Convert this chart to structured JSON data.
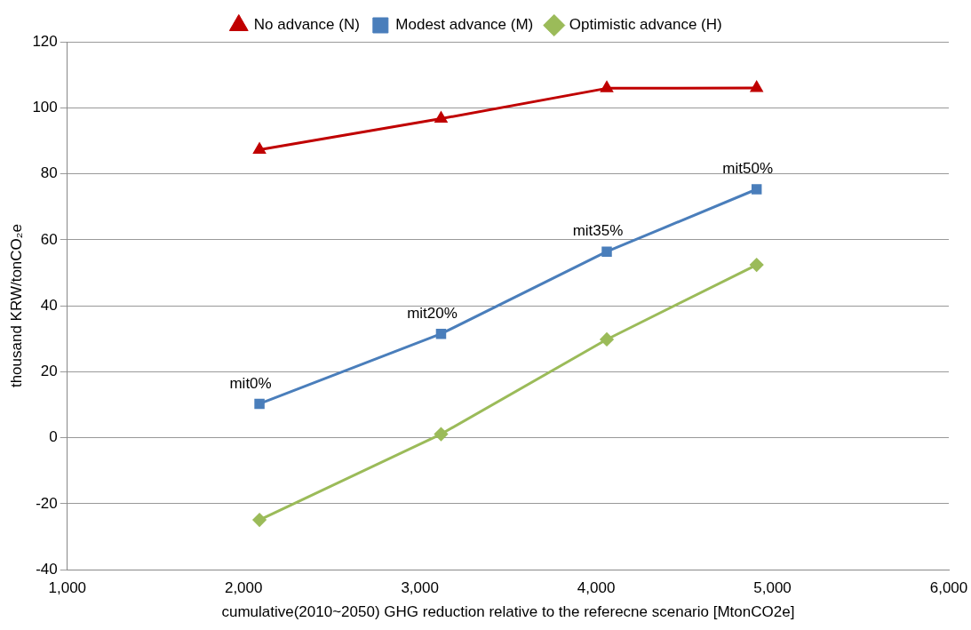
{
  "chart_data": {
    "type": "line",
    "xlabel": "cumulative(2010~2050) GHG reduction relative to the referecne scenario [MtonCO2e]",
    "ylabel": "thousand KRW/tonCO₂e",
    "x": [
      2090,
      3120,
      4060,
      4910
    ],
    "series": [
      {
        "name": "No advance (N)",
        "color": "#c00000",
        "marker": "triangle",
        "values": [
          87.3,
          96.7,
          105.9,
          106
        ]
      },
      {
        "name": "Modest advance (M)",
        "color": "#4a7ebb",
        "marker": "square",
        "values": [
          10.3,
          31.5,
          56.4,
          75.3
        ]
      },
      {
        "name": "Optimistic advance (H)",
        "color": "#9bbb59",
        "marker": "diamond",
        "values": [
          -24.9,
          1.1,
          29.8,
          52.4
        ]
      }
    ],
    "annotations": [
      {
        "text": "mit0%",
        "x": 2090,
        "y": 10.3
      },
      {
        "text": "mit20%",
        "x": 3120,
        "y": 31.5
      },
      {
        "text": "mit35%",
        "x": 4060,
        "y": 56.4
      },
      {
        "text": "mit50%",
        "x": 4910,
        "y": 75.3
      }
    ],
    "xlim": [
      1000,
      6000
    ],
    "xticks": [
      {
        "value": 1000,
        "label": "1,000"
      },
      {
        "value": 2000,
        "label": "2,000"
      },
      {
        "value": 3000,
        "label": "3,000"
      },
      {
        "value": 4000,
        "label": "4,000"
      },
      {
        "value": 5000,
        "label": "5,000"
      },
      {
        "value": 6000,
        "label": "6,000"
      }
    ],
    "ylim": [
      -40,
      120
    ],
    "yticks": [
      -40,
      -20,
      0,
      20,
      40,
      60,
      80,
      100,
      120
    ],
    "grid": "y",
    "legend": "top",
    "line_style": "solid"
  }
}
